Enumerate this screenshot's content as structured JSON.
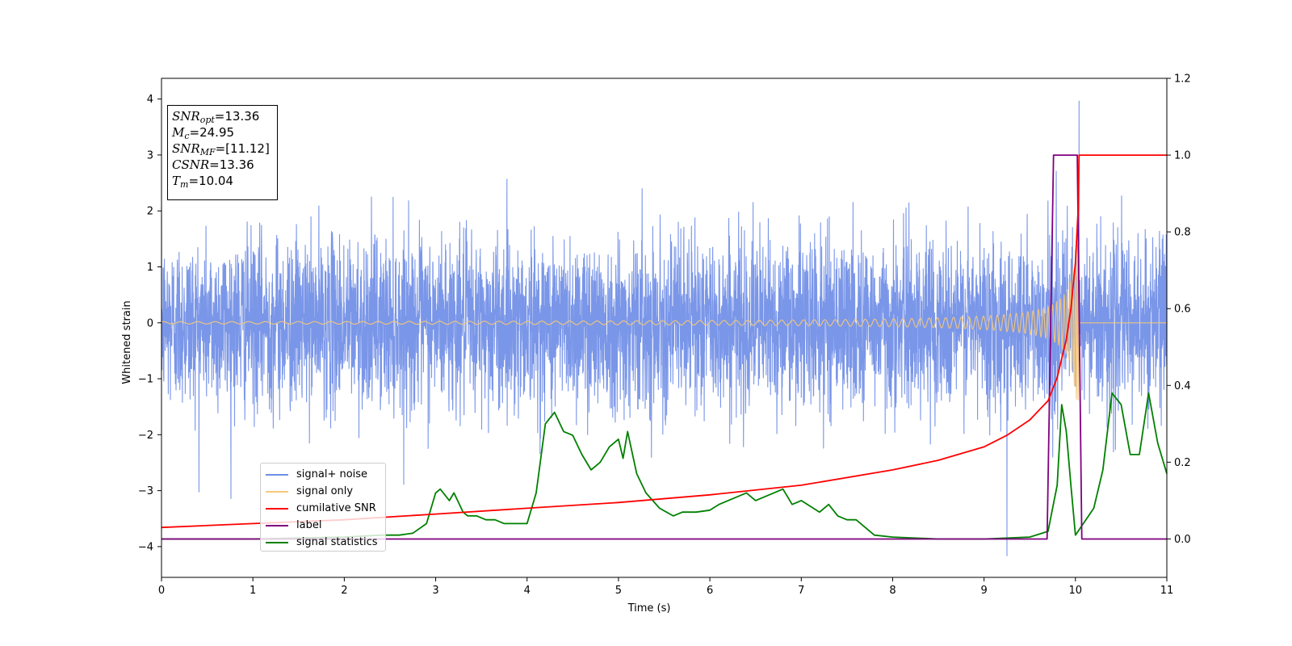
{
  "chart_data": {
    "type": "line",
    "title": "",
    "xlabel": "Time (s)",
    "ylabel": "Whitened strain",
    "y2label": "",
    "xlim": [
      0,
      11
    ],
    "ylim": [
      -4.55,
      4.37
    ],
    "y2lim": [
      -0.1,
      1.2
    ],
    "xticks": [
      "0",
      "1",
      "2",
      "3",
      "4",
      "5",
      "6",
      "7",
      "8",
      "9",
      "10",
      "11"
    ],
    "yticks": [
      "4",
      "3",
      "2",
      "1",
      "0",
      "−1",
      "−2",
      "−3",
      "−4"
    ],
    "y2ticks": [
      "1.2",
      "1.0",
      "0.8",
      "0.6",
      "0.4",
      "0.2",
      "0.0"
    ],
    "legend_position": "lower-left",
    "annotation": {
      "snr_opt": "=13.36",
      "mc": "=24.95",
      "snr_mf": "=[11.12]",
      "csnr": "=13.36",
      "tm": "=10.04"
    },
    "series": [
      {
        "name": "signal+ noise",
        "color": "#6f8de6",
        "axis": "left",
        "description_values": {
          "typical_range": [
            -2.2,
            2.4
          ],
          "max": 3.97,
          "max_at": 10.04,
          "min": -4.17,
          "min_at": 9.25
        }
      },
      {
        "name": "signal only",
        "color": "#f5c87a",
        "axis": "left",
        "chirp": {
          "t_start": 0,
          "t_merge": 10.04,
          "peak_amplitude": 1.4,
          "amplitude_at_start": 0.02
        }
      },
      {
        "name": "cumilative SNR",
        "color": "#ff0000",
        "axis": "right",
        "x": [
          0,
          1,
          2,
          3,
          4,
          5,
          6,
          7,
          8,
          8.5,
          9,
          9.25,
          9.5,
          9.7,
          9.8,
          9.9,
          9.95,
          10.0,
          10.03,
          10.04,
          11
        ],
        "values": [
          0.03,
          0.04,
          0.05,
          0.065,
          0.08,
          0.095,
          0.115,
          0.14,
          0.18,
          0.205,
          0.24,
          0.27,
          0.31,
          0.36,
          0.42,
          0.52,
          0.6,
          0.72,
          0.86,
          1.0,
          1.0
        ]
      },
      {
        "name": "label",
        "color": "#800080",
        "axis": "right",
        "x": [
          0,
          9.69,
          9.76,
          10.02,
          10.07,
          11
        ],
        "values": [
          0,
          0,
          1,
          1,
          0,
          0
        ]
      },
      {
        "name": "signal statistics",
        "color": "#008000",
        "axis": "right",
        "x": [
          0,
          1,
          2,
          2.4,
          2.6,
          2.75,
          2.9,
          3.0,
          3.05,
          3.15,
          3.2,
          3.3,
          3.35,
          3.45,
          3.55,
          3.65,
          3.75,
          3.85,
          4.0,
          4.1,
          4.2,
          4.3,
          4.4,
          4.5,
          4.6,
          4.7,
          4.8,
          4.9,
          5.0,
          5.05,
          5.1,
          5.2,
          5.3,
          5.45,
          5.6,
          5.7,
          5.85,
          6.0,
          6.1,
          6.2,
          6.4,
          6.5,
          6.6,
          6.8,
          6.9,
          7.0,
          7.2,
          7.3,
          7.4,
          7.5,
          7.6,
          7.8,
          8.0,
          8.5,
          9.0,
          9.5,
          9.7,
          9.75,
          9.8,
          9.85,
          9.9,
          9.95,
          10.0,
          10.2,
          10.3,
          10.4,
          10.5,
          10.6,
          10.7,
          10.8,
          10.9,
          11.0
        ],
        "values": [
          0,
          0,
          0.005,
          0.01,
          0.01,
          0.015,
          0.04,
          0.12,
          0.13,
          0.1,
          0.12,
          0.07,
          0.06,
          0.06,
          0.05,
          0.05,
          0.04,
          0.04,
          0.04,
          0.12,
          0.3,
          0.33,
          0.28,
          0.27,
          0.22,
          0.18,
          0.2,
          0.24,
          0.26,
          0.21,
          0.28,
          0.17,
          0.12,
          0.08,
          0.06,
          0.07,
          0.07,
          0.075,
          0.09,
          0.1,
          0.12,
          0.1,
          0.11,
          0.13,
          0.09,
          0.1,
          0.07,
          0.09,
          0.06,
          0.05,
          0.05,
          0.01,
          0.005,
          0,
          0,
          0.005,
          0.02,
          0.08,
          0.14,
          0.35,
          0.28,
          0.14,
          0.01,
          0.08,
          0.18,
          0.38,
          0.35,
          0.22,
          0.22,
          0.38,
          0.25,
          0.17
        ]
      }
    ]
  }
}
